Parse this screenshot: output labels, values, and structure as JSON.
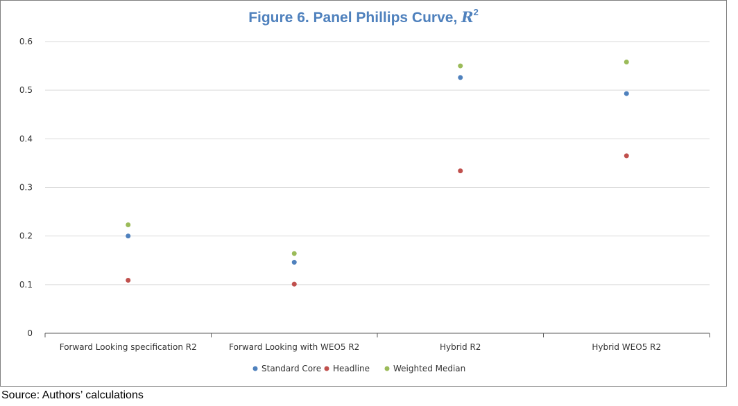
{
  "header": {
    "title_prefix": "Figure 6. Panel Phillips Curve, ",
    "title_symbol": "R",
    "title_superscript": "2"
  },
  "footer": {
    "source": "Source: Authors’ calculations"
  },
  "chart_data": {
    "type": "scatter",
    "title": "Figure 6. Panel Phillips Curve, R2",
    "xlabel": "",
    "ylabel": "",
    "categories": [
      "Forward Looking specification R2",
      "Forward Looking with WEO5 R2",
      "Hybrid R2",
      "Hybrid WEO5 R2"
    ],
    "ylim": [
      0,
      0.6
    ],
    "yticks": [
      0,
      0.1,
      0.2,
      0.3,
      0.4,
      0.5,
      0.6
    ],
    "ytick_labels": [
      "0",
      "0.1",
      "0.2",
      "0.3",
      "0.4",
      "0.5",
      "0.6"
    ],
    "grid": true,
    "legend_position": "bottom",
    "series": [
      {
        "name": "Standard Core",
        "color": "#4f81bd",
        "values": [
          0.2,
          0.146,
          0.526,
          0.493
        ]
      },
      {
        "name": "Headline",
        "color": "#c0504d",
        "values": [
          0.109,
          0.101,
          0.334,
          0.365
        ]
      },
      {
        "name": "Weighted Median",
        "color": "#9bbb59",
        "values": [
          0.223,
          0.164,
          0.55,
          0.558
        ]
      }
    ]
  }
}
